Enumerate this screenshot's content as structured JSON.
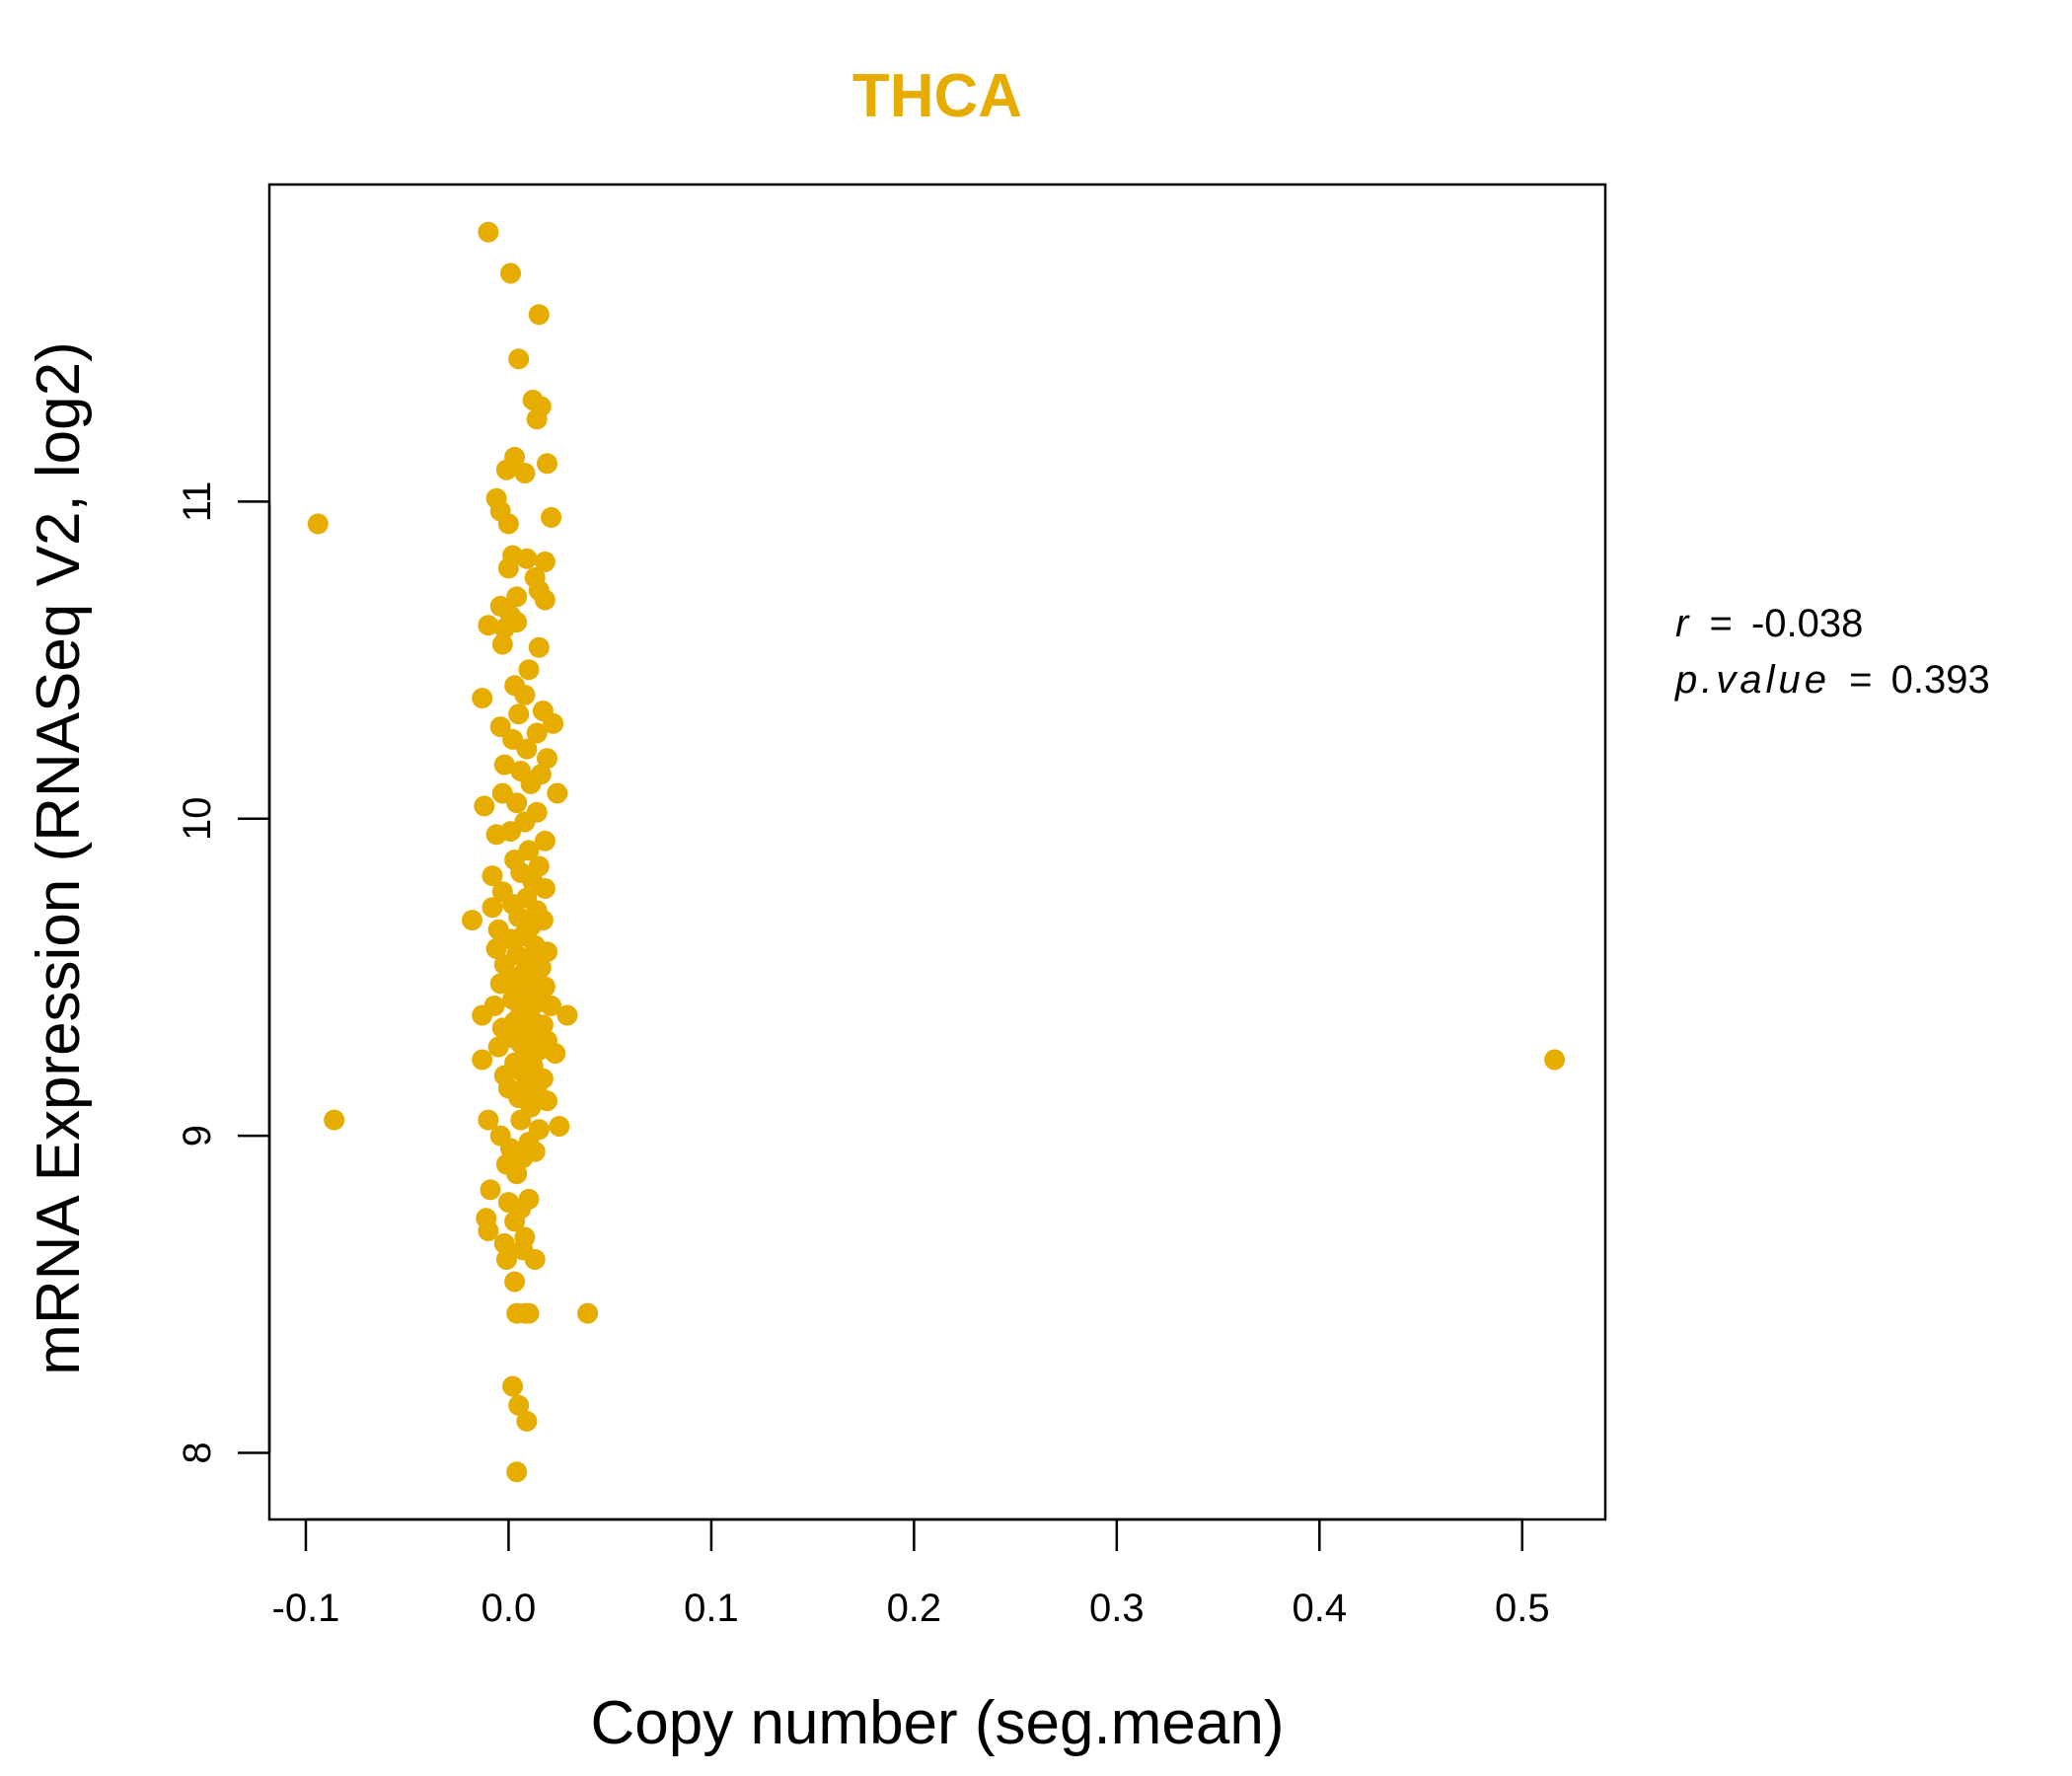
{
  "chart_data": {
    "type": "scatter",
    "title": "THCA",
    "xlabel": "Copy number (seg.mean)",
    "ylabel": "mRNA Expression (RNASeq V2, log2)",
    "xlim": [
      -0.118,
      0.541
    ],
    "ylim": [
      7.79,
      12.0
    ],
    "x_ticks": [
      -0.1,
      0.0,
      0.1,
      0.2,
      0.3,
      0.4,
      0.5
    ],
    "x_tick_labels": [
      "-0.1",
      "0.0",
      "0.1",
      "0.2",
      "0.3",
      "0.4",
      "0.5"
    ],
    "y_ticks": [
      8,
      9,
      10,
      11
    ],
    "y_tick_labels": [
      "8",
      "9",
      "10",
      "11"
    ],
    "grid": false,
    "color": "#E6AC00",
    "stats": {
      "r_label": "r",
      "r_value": "-0.038",
      "p_label": "p.value",
      "p_value": "0.393"
    },
    "points": [
      [
        -0.01,
        11.85
      ],
      [
        0.001,
        11.72
      ],
      [
        0.015,
        11.59
      ],
      [
        0.005,
        11.45
      ],
      [
        0.012,
        11.32
      ],
      [
        0.016,
        11.3
      ],
      [
        0.014,
        11.26
      ],
      [
        0.003,
        11.14
      ],
      [
        0.008,
        11.09
      ],
      [
        -0.001,
        11.1
      ],
      [
        0.019,
        11.12
      ],
      [
        -0.006,
        11.01
      ],
      [
        -0.004,
        10.97
      ],
      [
        0.0,
        10.93
      ],
      [
        0.021,
        10.95
      ],
      [
        -0.094,
        10.93
      ],
      [
        0.002,
        10.83
      ],
      [
        0.009,
        10.82
      ],
      [
        0.018,
        10.81
      ],
      [
        0.0,
        10.79
      ],
      [
        0.013,
        10.76
      ],
      [
        0.015,
        10.72
      ],
      [
        0.004,
        10.7
      ],
      [
        0.018,
        10.69
      ],
      [
        -0.004,
        10.67
      ],
      [
        0.001,
        10.64
      ],
      [
        -0.01,
        10.61
      ],
      [
        -0.002,
        10.6
      ],
      [
        0.004,
        10.62
      ],
      [
        -0.003,
        10.55
      ],
      [
        0.015,
        10.54
      ],
      [
        0.01,
        10.47
      ],
      [
        0.003,
        10.42
      ],
      [
        -0.013,
        10.38
      ],
      [
        0.008,
        10.39
      ],
      [
        0.017,
        10.34
      ],
      [
        0.005,
        10.33
      ],
      [
        -0.004,
        10.29
      ],
      [
        0.022,
        10.3
      ],
      [
        0.014,
        10.27
      ],
      [
        0.002,
        10.25
      ],
      [
        0.009,
        10.22
      ],
      [
        0.019,
        10.19
      ],
      [
        -0.002,
        10.17
      ],
      [
        0.006,
        10.15
      ],
      [
        0.016,
        10.14
      ],
      [
        0.011,
        10.11
      ],
      [
        -0.003,
        10.08
      ],
      [
        0.024,
        10.08
      ],
      [
        0.004,
        10.05
      ],
      [
        -0.012,
        10.04
      ],
      [
        0.014,
        10.02
      ],
      [
        0.008,
        9.99
      ],
      [
        0.001,
        9.96
      ],
      [
        -0.006,
        9.95
      ],
      [
        0.018,
        9.93
      ],
      [
        0.01,
        9.9
      ],
      [
        0.003,
        9.87
      ],
      [
        0.015,
        9.85
      ],
      [
        -0.008,
        9.82
      ],
      [
        0.006,
        9.83
      ],
      [
        0.012,
        9.8
      ],
      [
        0.018,
        9.78
      ],
      [
        -0.003,
        9.77
      ],
      [
        0.009,
        9.75
      ],
      [
        0.002,
        9.73
      ],
      [
        -0.008,
        9.72
      ],
      [
        0.014,
        9.71
      ],
      [
        0.005,
        9.69
      ],
      [
        -0.018,
        9.68
      ],
      [
        0.017,
        9.68
      ],
      [
        0.011,
        9.66
      ],
      [
        -0.005,
        9.65
      ],
      [
        0.007,
        9.63
      ],
      [
        0.001,
        9.62
      ],
      [
        0.013,
        9.6
      ],
      [
        -0.006,
        9.59
      ],
      [
        0.019,
        9.58
      ],
      [
        0.004,
        9.57
      ],
      [
        0.01,
        9.55
      ],
      [
        -0.002,
        9.54
      ],
      [
        0.016,
        9.53
      ],
      [
        0.007,
        9.51
      ],
      [
        0.0,
        9.5
      ],
      [
        0.012,
        9.49
      ],
      [
        -0.004,
        9.48
      ],
      [
        0.018,
        9.47
      ],
      [
        0.005,
        9.46
      ],
      [
        0.009,
        9.44
      ],
      [
        0.002,
        9.43
      ],
      [
        0.014,
        9.42
      ],
      [
        -0.007,
        9.41
      ],
      [
        0.021,
        9.41
      ],
      [
        0.006,
        9.4
      ],
      [
        -0.013,
        9.38
      ],
      [
        0.029,
        9.38
      ],
      [
        0.011,
        9.37
      ],
      [
        0.003,
        9.36
      ],
      [
        0.017,
        9.35
      ],
      [
        -0.003,
        9.34
      ],
      [
        0.008,
        9.33
      ],
      [
        0.013,
        9.32
      ],
      [
        0.001,
        9.31
      ],
      [
        0.019,
        9.3
      ],
      [
        0.006,
        9.29
      ],
      [
        -0.005,
        9.28
      ],
      [
        0.015,
        9.27
      ],
      [
        0.01,
        9.26
      ],
      [
        -0.013,
        9.24
      ],
      [
        0.023,
        9.26
      ],
      [
        0.003,
        9.23
      ],
      [
        0.012,
        9.22
      ],
      [
        0.007,
        9.2
      ],
      [
        -0.002,
        9.19
      ],
      [
        0.017,
        9.18
      ],
      [
        0.009,
        9.16
      ],
      [
        0.0,
        9.15
      ],
      [
        0.014,
        9.14
      ],
      [
        0.005,
        9.12
      ],
      [
        0.019,
        9.11
      ],
      [
        0.011,
        9.09
      ],
      [
        -0.01,
        9.05
      ],
      [
        0.025,
        9.03
      ],
      [
        0.006,
        9.05
      ],
      [
        0.015,
        9.02
      ],
      [
        -0.004,
        9.0
      ],
      [
        0.01,
        8.98
      ],
      [
        0.001,
        8.96
      ],
      [
        0.013,
        8.95
      ],
      [
        0.007,
        8.93
      ],
      [
        -0.001,
        8.91
      ],
      [
        0.004,
        8.88
      ],
      [
        -0.009,
        8.83
      ],
      [
        0.01,
        8.8
      ],
      [
        0.0,
        8.79
      ],
      [
        0.006,
        8.77
      ],
      [
        -0.011,
        8.74
      ],
      [
        0.003,
        8.73
      ],
      [
        -0.01,
        8.7
      ],
      [
        0.008,
        8.68
      ],
      [
        -0.002,
        8.66
      ],
      [
        0.007,
        8.64
      ],
      [
        0.013,
        8.61
      ],
      [
        -0.001,
        8.61
      ],
      [
        0.003,
        8.54
      ],
      [
        0.004,
        8.44
      ],
      [
        0.008,
        8.44
      ],
      [
        0.01,
        8.44
      ],
      [
        0.039,
        8.44
      ],
      [
        0.002,
        8.21
      ],
      [
        0.005,
        8.15
      ],
      [
        0.009,
        8.1
      ],
      [
        0.004,
        7.94
      ],
      [
        -0.086,
        9.05
      ],
      [
        0.516,
        9.24
      ]
    ]
  }
}
